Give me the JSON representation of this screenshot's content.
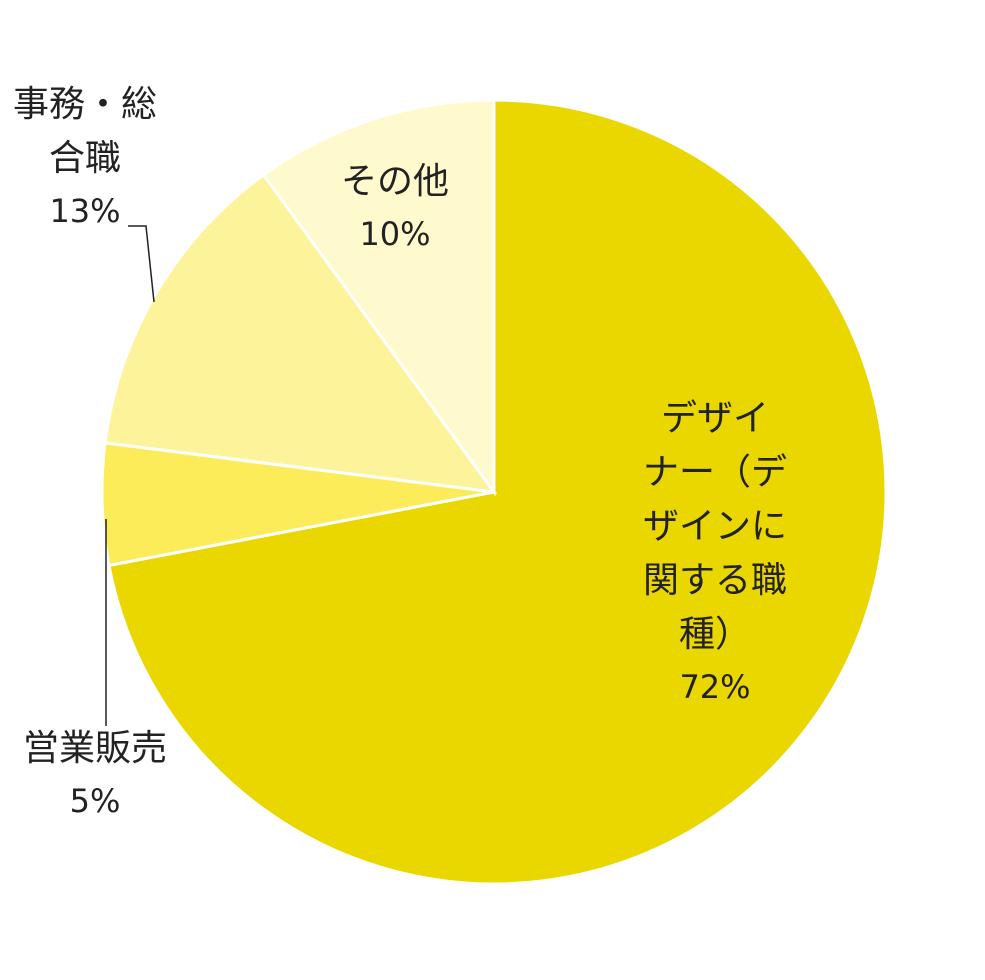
{
  "chart_data": {
    "type": "pie",
    "title": "",
    "start": "top, clockwise",
    "slices": [
      {
        "label_lines": [
          "デザイ",
          "ナー（デ",
          "ザインに",
          "関する職",
          "種）"
        ],
        "label": "デザイナー（デザインに関する職種）",
        "value": 72,
        "value_label": "72%",
        "color": "#EAD700"
      },
      {
        "label_lines": [
          "営業販売"
        ],
        "label": "営業販売",
        "value": 5,
        "value_label": "5%",
        "color": "#FCEC5A"
      },
      {
        "label_lines": [
          "事務・総",
          "合職"
        ],
        "label": "事務・総合職",
        "value": 13,
        "value_label": "13%",
        "color": "#FDF39A"
      },
      {
        "label_lines": [
          "その他"
        ],
        "label": "その他",
        "value": 10,
        "value_label": "10%",
        "color": "#FFFACD"
      }
    ]
  }
}
